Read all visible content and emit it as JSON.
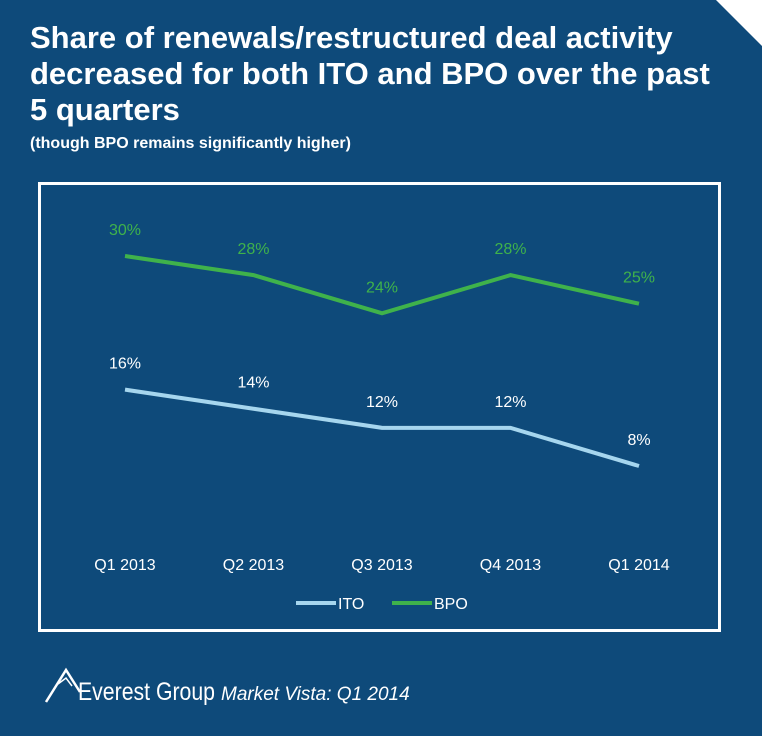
{
  "colors": {
    "background": "#0e4a7a",
    "frame": "#ffffff",
    "ito": "#a6d6ee",
    "bpo": "#3fb24b",
    "axis_text": "#ffffff"
  },
  "header": {
    "title": "Share of renewals/restructured deal activity decreased for both ITO and BPO over the past 5 quarters",
    "subtitle": "(though BPO remains significantly higher)"
  },
  "footer": {
    "brand": "Everest Group",
    "publication": "Market Vista: Q1 2014",
    "logo_icon": "mountain-peak-icon"
  },
  "chart_data": {
    "type": "line",
    "title": "Share of renewals/restructured deal activity decreased for both ITO and BPO over the past 5 quarters",
    "subtitle": "(though BPO remains significantly higher)",
    "categories": [
      "Q1 2013",
      "Q2 2013",
      "Q3 2013",
      "Q4 2013",
      "Q1 2014"
    ],
    "series": [
      {
        "name": "ITO",
        "values": [
          16,
          14,
          12,
          12,
          8
        ],
        "labels": [
          "16%",
          "14%",
          "12%",
          "12%",
          "8%"
        ],
        "color": "#a6d6ee"
      },
      {
        "name": "BPO",
        "values": [
          30,
          28,
          24,
          28,
          25
        ],
        "labels": [
          "30%",
          "28%",
          "24%",
          "28%",
          "25%"
        ],
        "color": "#3fb24b"
      }
    ],
    "xlabel": "",
    "ylabel": "",
    "ylim": [
      0,
      35
    ],
    "grid": false,
    "legend_position": "bottom-center",
    "unit": "%"
  }
}
